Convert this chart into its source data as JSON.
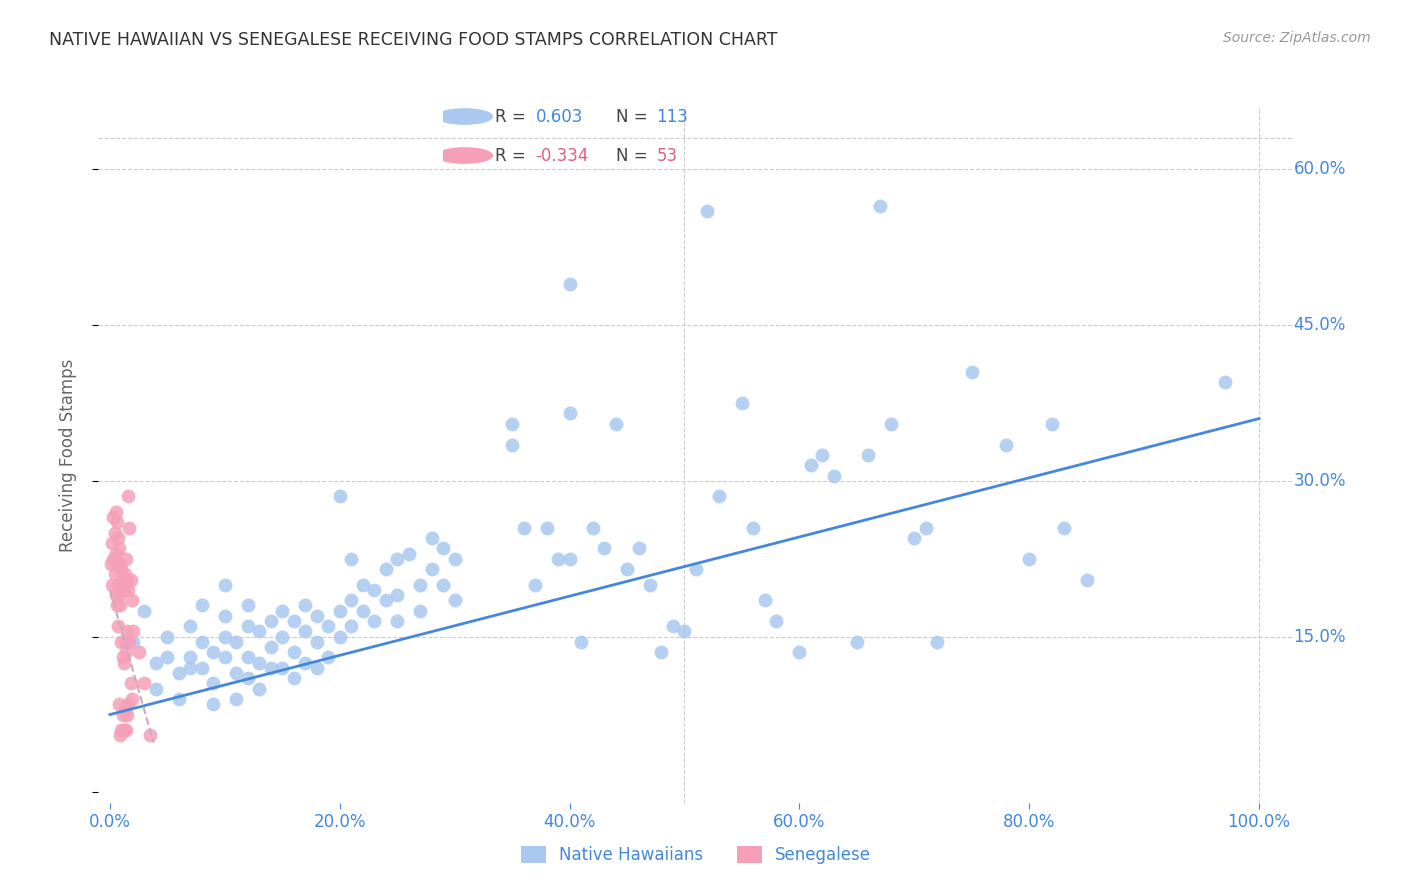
{
  "title": "NATIVE HAWAIIAN VS SENEGALESE RECEIVING FOOD STAMPS CORRELATION CHART",
  "source": "Source: ZipAtlas.com",
  "ylabel": "Receiving Food Stamps",
  "yticks": [
    0.0,
    0.15,
    0.3,
    0.45,
    0.6
  ],
  "ytick_labels": [
    "",
    "15.0%",
    "30.0%",
    "45.0%",
    "60.0%"
  ],
  "xticks": [
    0.0,
    0.2,
    0.4,
    0.6,
    0.8,
    1.0
  ],
  "xtick_labels": [
    "0.0%",
    "20.0%",
    "40.0%",
    "60.0%",
    "80.0%",
    "100.0%"
  ],
  "xlim": [
    -0.01,
    1.03
  ],
  "ylim": [
    -0.01,
    0.66
  ],
  "hawaiian_color": "#aac8f0",
  "senegalese_color": "#f5a0b8",
  "regression_line_color": "#4488dd",
  "senegalese_line_color": "#ccaabb",
  "background_color": "#ffffff",
  "grid_color": "#cccccc",
  "title_color": "#333333",
  "tick_color": "#4488dd",
  "ylabel_color": "#666666",
  "legend_r1_color": "#4488dd",
  "legend_r2_color": "#e06080",
  "hawaiian_line_x": [
    0.0,
    1.0
  ],
  "hawaiian_line_y": [
    0.075,
    0.36
  ],
  "senegalese_line_x": [
    0.0,
    0.038
  ],
  "senegalese_line_y": [
    0.195,
    0.048
  ],
  "hawaiian_points": [
    [
      0.02,
      0.145
    ],
    [
      0.03,
      0.175
    ],
    [
      0.04,
      0.125
    ],
    [
      0.04,
      0.1
    ],
    [
      0.05,
      0.15
    ],
    [
      0.05,
      0.13
    ],
    [
      0.06,
      0.115
    ],
    [
      0.06,
      0.09
    ],
    [
      0.07,
      0.16
    ],
    [
      0.07,
      0.13
    ],
    [
      0.07,
      0.12
    ],
    [
      0.08,
      0.18
    ],
    [
      0.08,
      0.145
    ],
    [
      0.08,
      0.12
    ],
    [
      0.09,
      0.135
    ],
    [
      0.09,
      0.105
    ],
    [
      0.09,
      0.085
    ],
    [
      0.1,
      0.2
    ],
    [
      0.1,
      0.17
    ],
    [
      0.1,
      0.15
    ],
    [
      0.1,
      0.13
    ],
    [
      0.11,
      0.145
    ],
    [
      0.11,
      0.115
    ],
    [
      0.11,
      0.09
    ],
    [
      0.12,
      0.18
    ],
    [
      0.12,
      0.16
    ],
    [
      0.12,
      0.13
    ],
    [
      0.12,
      0.11
    ],
    [
      0.13,
      0.155
    ],
    [
      0.13,
      0.125
    ],
    [
      0.13,
      0.1
    ],
    [
      0.14,
      0.165
    ],
    [
      0.14,
      0.14
    ],
    [
      0.14,
      0.12
    ],
    [
      0.15,
      0.175
    ],
    [
      0.15,
      0.15
    ],
    [
      0.15,
      0.12
    ],
    [
      0.16,
      0.165
    ],
    [
      0.16,
      0.135
    ],
    [
      0.16,
      0.11
    ],
    [
      0.17,
      0.18
    ],
    [
      0.17,
      0.155
    ],
    [
      0.17,
      0.125
    ],
    [
      0.18,
      0.17
    ],
    [
      0.18,
      0.145
    ],
    [
      0.18,
      0.12
    ],
    [
      0.19,
      0.16
    ],
    [
      0.19,
      0.13
    ],
    [
      0.2,
      0.285
    ],
    [
      0.2,
      0.175
    ],
    [
      0.2,
      0.15
    ],
    [
      0.21,
      0.225
    ],
    [
      0.21,
      0.185
    ],
    [
      0.21,
      0.16
    ],
    [
      0.22,
      0.2
    ],
    [
      0.22,
      0.175
    ],
    [
      0.23,
      0.195
    ],
    [
      0.23,
      0.165
    ],
    [
      0.24,
      0.215
    ],
    [
      0.24,
      0.185
    ],
    [
      0.25,
      0.225
    ],
    [
      0.25,
      0.19
    ],
    [
      0.25,
      0.165
    ],
    [
      0.26,
      0.23
    ],
    [
      0.27,
      0.2
    ],
    [
      0.27,
      0.175
    ],
    [
      0.28,
      0.245
    ],
    [
      0.28,
      0.215
    ],
    [
      0.29,
      0.235
    ],
    [
      0.29,
      0.2
    ],
    [
      0.3,
      0.225
    ],
    [
      0.3,
      0.185
    ],
    [
      0.35,
      0.355
    ],
    [
      0.35,
      0.335
    ],
    [
      0.36,
      0.255
    ],
    [
      0.37,
      0.2
    ],
    [
      0.38,
      0.255
    ],
    [
      0.39,
      0.225
    ],
    [
      0.4,
      0.49
    ],
    [
      0.4,
      0.365
    ],
    [
      0.4,
      0.225
    ],
    [
      0.41,
      0.145
    ],
    [
      0.42,
      0.255
    ],
    [
      0.43,
      0.235
    ],
    [
      0.44,
      0.355
    ],
    [
      0.45,
      0.215
    ],
    [
      0.46,
      0.235
    ],
    [
      0.47,
      0.2
    ],
    [
      0.48,
      0.135
    ],
    [
      0.49,
      0.16
    ],
    [
      0.5,
      0.155
    ],
    [
      0.51,
      0.215
    ],
    [
      0.52,
      0.56
    ],
    [
      0.53,
      0.285
    ],
    [
      0.55,
      0.375
    ],
    [
      0.56,
      0.255
    ],
    [
      0.57,
      0.185
    ],
    [
      0.58,
      0.165
    ],
    [
      0.6,
      0.135
    ],
    [
      0.61,
      0.315
    ],
    [
      0.62,
      0.325
    ],
    [
      0.63,
      0.305
    ],
    [
      0.65,
      0.145
    ],
    [
      0.66,
      0.325
    ],
    [
      0.67,
      0.565
    ],
    [
      0.68,
      0.355
    ],
    [
      0.7,
      0.245
    ],
    [
      0.71,
      0.255
    ],
    [
      0.72,
      0.145
    ],
    [
      0.75,
      0.405
    ],
    [
      0.78,
      0.335
    ],
    [
      0.8,
      0.225
    ],
    [
      0.82,
      0.355
    ],
    [
      0.83,
      0.255
    ],
    [
      0.85,
      0.205
    ],
    [
      0.97,
      0.395
    ]
  ],
  "senegalese_points": [
    [
      0.001,
      0.22
    ],
    [
      0.002,
      0.24
    ],
    [
      0.002,
      0.2
    ],
    [
      0.003,
      0.265
    ],
    [
      0.003,
      0.225
    ],
    [
      0.004,
      0.25
    ],
    [
      0.004,
      0.21
    ],
    [
      0.005,
      0.27
    ],
    [
      0.005,
      0.23
    ],
    [
      0.005,
      0.19
    ],
    [
      0.006,
      0.26
    ],
    [
      0.006,
      0.22
    ],
    [
      0.006,
      0.18
    ],
    [
      0.007,
      0.245
    ],
    [
      0.007,
      0.2
    ],
    [
      0.007,
      0.16
    ],
    [
      0.008,
      0.235
    ],
    [
      0.008,
      0.19
    ],
    [
      0.008,
      0.085
    ],
    [
      0.009,
      0.22
    ],
    [
      0.009,
      0.18
    ],
    [
      0.009,
      0.055
    ],
    [
      0.01,
      0.215
    ],
    [
      0.01,
      0.145
    ],
    [
      0.01,
      0.06
    ],
    [
      0.011,
      0.205
    ],
    [
      0.011,
      0.13
    ],
    [
      0.011,
      0.075
    ],
    [
      0.012,
      0.195
    ],
    [
      0.012,
      0.125
    ],
    [
      0.012,
      0.06
    ],
    [
      0.013,
      0.21
    ],
    [
      0.013,
      0.145
    ],
    [
      0.013,
      0.08
    ],
    [
      0.014,
      0.225
    ],
    [
      0.014,
      0.135
    ],
    [
      0.014,
      0.06
    ],
    [
      0.015,
      0.205
    ],
    [
      0.015,
      0.155
    ],
    [
      0.015,
      0.075
    ],
    [
      0.016,
      0.285
    ],
    [
      0.016,
      0.195
    ],
    [
      0.016,
      0.085
    ],
    [
      0.017,
      0.255
    ],
    [
      0.017,
      0.145
    ],
    [
      0.018,
      0.205
    ],
    [
      0.018,
      0.105
    ],
    [
      0.019,
      0.185
    ],
    [
      0.019,
      0.09
    ],
    [
      0.02,
      0.155
    ],
    [
      0.025,
      0.135
    ],
    [
      0.03,
      0.105
    ],
    [
      0.035,
      0.055
    ]
  ]
}
